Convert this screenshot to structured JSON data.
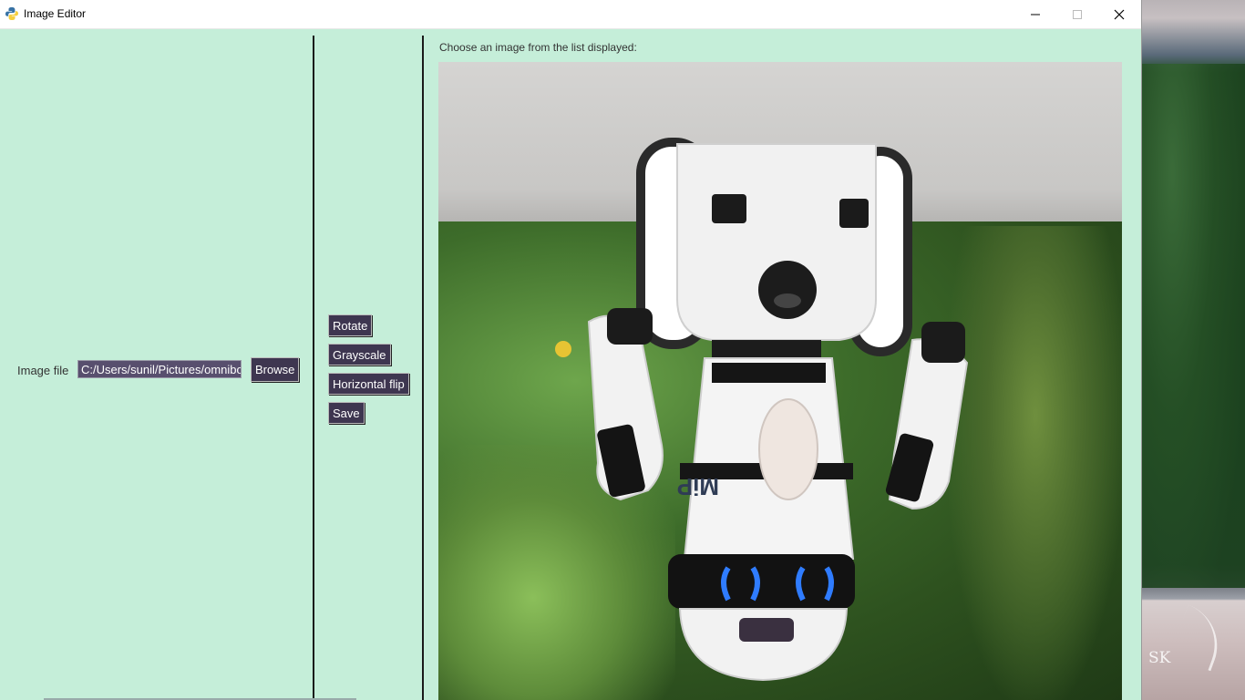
{
  "window": {
    "title": "Image Editor",
    "controls": [
      "minimize",
      "maximize",
      "close"
    ]
  },
  "file_panel": {
    "label": "Image file",
    "path_value": "C:/Users/sunil/Pictures/omnibot.png",
    "browse_label": "Browse"
  },
  "actions": {
    "rotate_label": "Rotate",
    "grayscale_label": "Grayscale",
    "hflip_label": "Horizontal flip",
    "save_label": "Save"
  },
  "preview": {
    "instruction": "Choose an image from the list displayed:",
    "robot_logo_text": "MiP"
  },
  "desktop": {
    "watermark": "SK"
  },
  "colors": {
    "window_bg": "#c5eed9",
    "button_bg": "#3e3650",
    "input_bg": "#584f6e"
  },
  "icons": {
    "app": "python-icon",
    "minimize": "minimize-icon",
    "maximize": "maximize-icon",
    "close": "close-icon"
  }
}
